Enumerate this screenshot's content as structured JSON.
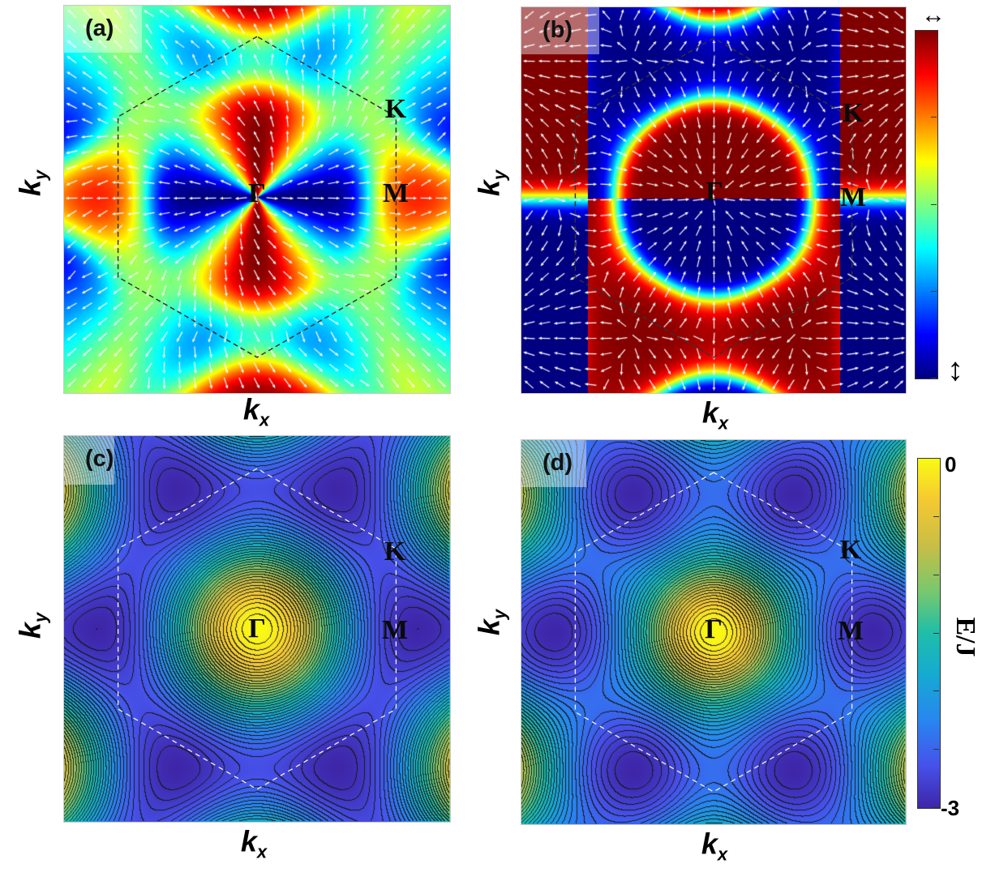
{
  "panels": [
    {
      "id": "a",
      "label": "(a)",
      "kind": "spin",
      "variant": "a"
    },
    {
      "id": "b",
      "label": "(b)",
      "kind": "spin",
      "variant": "b"
    },
    {
      "id": "c",
      "label": "(c)",
      "kind": "energy",
      "variant": "c"
    },
    {
      "id": "d",
      "label": "(d)",
      "kind": "energy",
      "variant": "d"
    }
  ],
  "points": {
    "gamma": "Γ",
    "k": "K",
    "m": "M"
  },
  "axes": {
    "x": "k",
    "x_sub": "x",
    "y": "k",
    "y_sub": "y"
  },
  "colorbar_top": {
    "top_symbol": "↔",
    "bottom_symbol": "↕"
  },
  "colorbar_bottom": {
    "max_label": "0",
    "min_label": "-3",
    "title": "E/J"
  },
  "colors": {
    "contour_line": "#111111",
    "bz_line": "#333333",
    "arrow": "#ffffff"
  }
}
